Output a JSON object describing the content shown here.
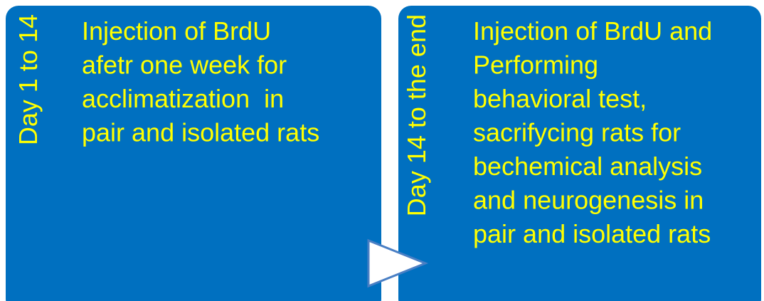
{
  "steps": [
    {
      "label": "Day 1 to 14",
      "lines": [
        "Injection of BrdU",
        "afetr one week for",
        "acclimatization  in",
        "pair and isolated rats"
      ]
    },
    {
      "label": "Day 14 to the end",
      "lines": [
        "Injection of BrdU and",
        "Performing",
        "behavioral test,",
        "sacrifycing rats for",
        "bechemical analysis",
        "and neurogenesis in",
        "pair and isolated rats"
      ]
    }
  ]
}
